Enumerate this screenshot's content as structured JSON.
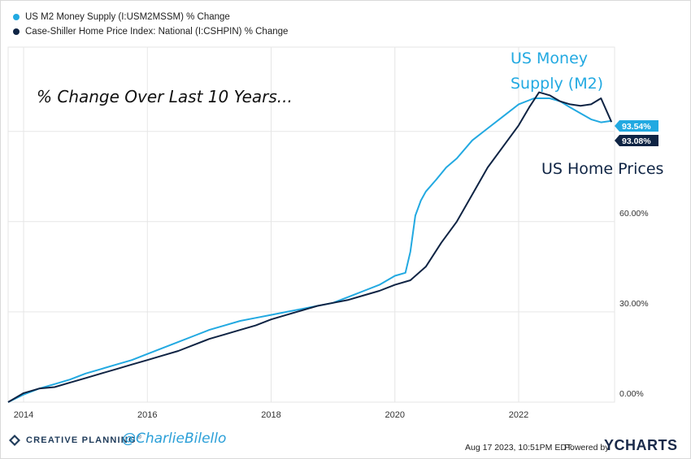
{
  "legend": [
    {
      "label": "US M2 Money Supply (I:USM2MSSM) % Change",
      "color": "#22a9e1"
    },
    {
      "label": "Case-Shiller Home Price Index: National (I:CSHPIN) % Change",
      "color": "#0f2444"
    }
  ],
  "annotations": {
    "title": "% Change Over Last 10 Years...",
    "money_line1": "US Money",
    "money_line2": "Supply (M2)",
    "home": "US Home Prices"
  },
  "footer": {
    "brand": "CREATIVE PLANNING",
    "brand_mark": "®",
    "handle": "@CharlieBilello",
    "timestamp": "Aug 17 2023, 10:51PM EDT.",
    "powered": "Powered by",
    "ycharts": "YCHARTS"
  },
  "colors": {
    "m2": "#22a9e1",
    "home": "#0f2444",
    "grid": "#e6e6e6"
  },
  "chart_data": {
    "type": "line",
    "x_ticks": [
      "2014",
      "2016",
      "2018",
      "2020",
      "2022"
    ],
    "y_ticks": [
      "0.00%",
      "30.00%",
      "60.00%"
    ],
    "ylim": [
      0,
      118
    ],
    "xlim": [
      2013.75,
      2023.55
    ],
    "grid": true,
    "end_labels": [
      "93.54%",
      "93.08%"
    ],
    "series": [
      {
        "name": "US M2 Money Supply (I:USM2MSSM) % Change",
        "x": [
          2013.75,
          2014.0,
          2014.25,
          2014.5,
          2014.75,
          2015.0,
          2015.25,
          2015.5,
          2015.75,
          2016.0,
          2016.25,
          2016.5,
          2016.75,
          2017.0,
          2017.25,
          2017.5,
          2017.75,
          2018.0,
          2018.25,
          2018.5,
          2018.75,
          2019.0,
          2019.25,
          2019.5,
          2019.75,
          2020.0,
          2020.17,
          2020.25,
          2020.33,
          2020.42,
          2020.5,
          2020.67,
          2020.83,
          2021.0,
          2021.25,
          2021.5,
          2021.75,
          2022.0,
          2022.25,
          2022.5,
          2022.67,
          2022.83,
          2023.0,
          2023.17,
          2023.33,
          2023.5
        ],
        "values": [
          0.0,
          2.5,
          4.5,
          6.0,
          7.5,
          9.5,
          11.0,
          12.5,
          14.0,
          16.0,
          18.0,
          20.0,
          22.0,
          24.0,
          25.5,
          27.0,
          28.0,
          29.0,
          30.0,
          31.0,
          32.0,
          33.0,
          35.0,
          37.0,
          39.0,
          42.0,
          43.0,
          50.0,
          62.0,
          67.0,
          70.0,
          74.0,
          78.0,
          81.0,
          87.0,
          91.0,
          95.0,
          99.0,
          101.0,
          101.0,
          100.0,
          98.0,
          96.0,
          94.0,
          93.0,
          93.5
        ]
      },
      {
        "name": "Case-Shiller Home Price Index: National (I:CSHPIN) % Change",
        "x": [
          2013.75,
          2014.0,
          2014.25,
          2014.5,
          2014.75,
          2015.0,
          2015.25,
          2015.5,
          2015.75,
          2016.0,
          2016.25,
          2016.5,
          2016.75,
          2017.0,
          2017.25,
          2017.5,
          2017.75,
          2018.0,
          2018.25,
          2018.5,
          2018.75,
          2019.0,
          2019.25,
          2019.5,
          2019.75,
          2020.0,
          2020.25,
          2020.5,
          2020.75,
          2021.0,
          2021.25,
          2021.5,
          2021.75,
          2022.0,
          2022.17,
          2022.33,
          2022.5,
          2022.67,
          2022.83,
          2023.0,
          2023.17,
          2023.33,
          2023.5
        ],
        "values": [
          0.0,
          3.0,
          4.5,
          5.0,
          6.5,
          8.0,
          9.5,
          11.0,
          12.5,
          14.0,
          15.5,
          17.0,
          19.0,
          21.0,
          22.5,
          24.0,
          25.5,
          27.5,
          29.0,
          30.5,
          32.0,
          33.0,
          34.0,
          35.5,
          37.0,
          39.0,
          40.5,
          45.0,
          53.0,
          60.0,
          69.0,
          78.0,
          85.0,
          92.0,
          98.0,
          103.0,
          102.0,
          100.0,
          99.0,
          98.5,
          99.0,
          101.0,
          93.1
        ]
      }
    ]
  }
}
